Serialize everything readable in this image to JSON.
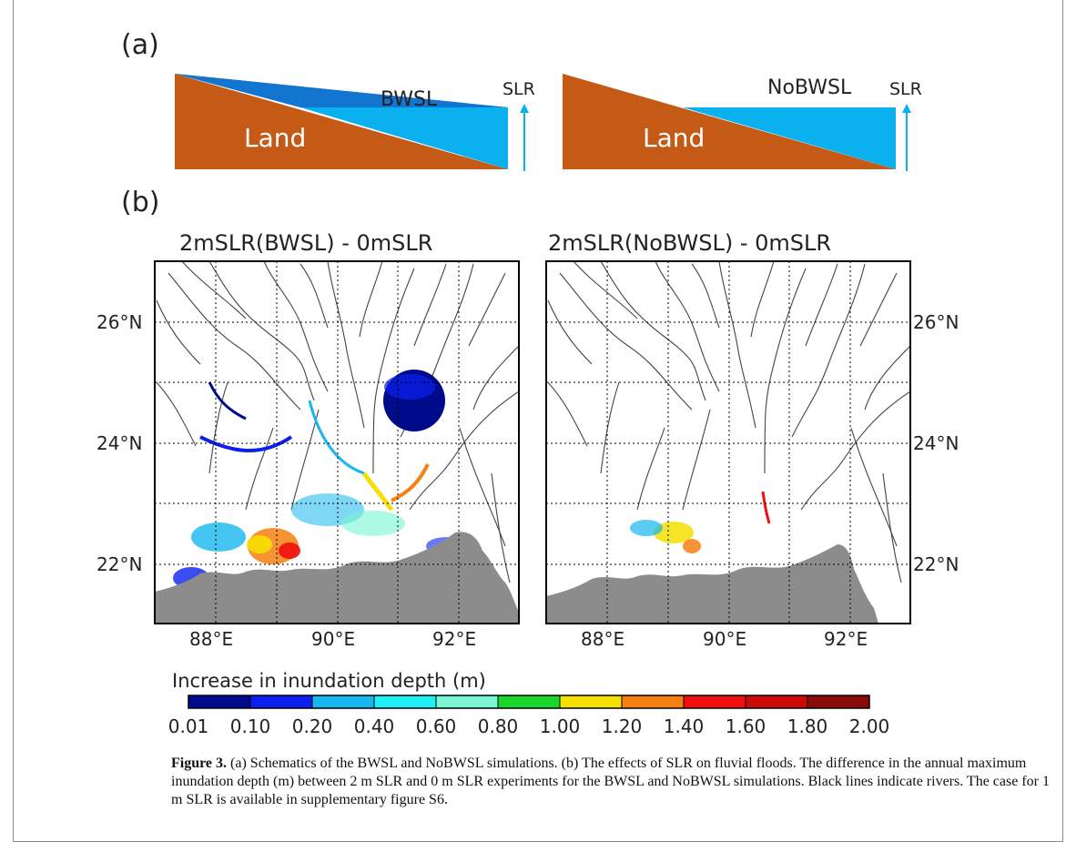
{
  "figure": {
    "panel_a_label": "(a)",
    "panel_b_label": "(b)",
    "schematic_left": {
      "sea_label": "BWSL",
      "land_label": "Land",
      "slr_label": "SLR"
    },
    "schematic_right": {
      "sea_label": "NoBWSL",
      "land_label": "Land",
      "slr_label": "SLR"
    },
    "map_left_title": "2mSLR(BWSL) - 0mSLR",
    "map_right_title": "2mSLR(NoBWSL) - 0mSLR",
    "lat_labels": [
      "26°N",
      "24°N",
      "22°N"
    ],
    "lon_labels": [
      "88°E",
      "90°E",
      "92°E"
    ],
    "colorbar": {
      "title": "Increase in inundation depth (m)",
      "ticks": [
        "0.01",
        "0.10",
        "0.20",
        "0.40",
        "0.60",
        "0.80",
        "1.00",
        "1.20",
        "1.40",
        "1.60",
        "1.80",
        "2.00"
      ],
      "colors": [
        "#000b8c",
        "#0a1ff0",
        "#16b6ee",
        "#1ff0f5",
        "#78f5d2",
        "#18d62a",
        "#f5e000",
        "#f58010",
        "#f01010",
        "#cc0808",
        "#8a0a0a"
      ]
    },
    "colors": {
      "land": "#c45a16",
      "sea_dark": "#1869b8",
      "sea_light": "#0bb1ee",
      "ocean_gray": "#8c8c8c",
      "river": "#444444"
    }
  },
  "caption": {
    "label": "Figure 3.",
    "text": " (a) Schematics of the BWSL and NoBWSL simulations. (b) The effects of SLR on fluvial floods. The difference in the annual maximum inundation depth (m) between 2 m SLR and 0 m SLR experiments for the BWSL and NoBWSL simulations. Black lines indicate rivers. The case for 1 m SLR is available in supplementary figure S6."
  }
}
